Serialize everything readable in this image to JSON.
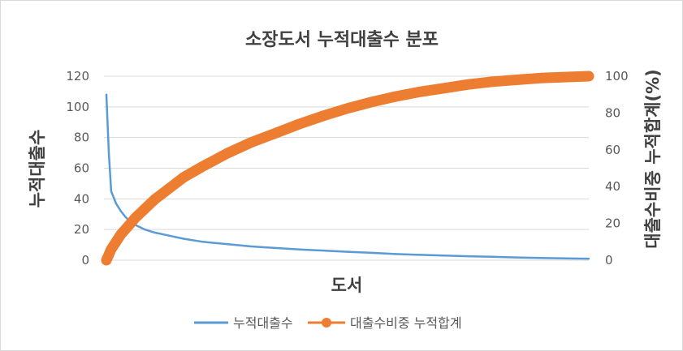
{
  "chart_data": {
    "type": "line",
    "title": "소장도서 누적대출수 분포",
    "xlabel": "도서",
    "ylabel": "누적대출수",
    "ylabel_right": "대출수비중 누적합계(%)",
    "ylim": [
      0,
      120
    ],
    "yticks": [
      "0",
      "20",
      "40",
      "60",
      "80",
      "100",
      "120"
    ],
    "ylim_right": [
      0,
      100
    ],
    "yticks_right": [
      "0",
      "20",
      "40",
      "60",
      "80",
      "100"
    ],
    "grid": true,
    "legend_position": "bottom",
    "x": [
      0,
      0.005,
      0.01,
      0.02,
      0.03,
      0.04,
      0.05,
      0.06,
      0.08,
      0.1,
      0.13,
      0.16,
      0.2,
      0.25,
      0.3,
      0.35,
      0.4,
      0.45,
      0.5,
      0.55,
      0.6,
      0.65,
      0.7,
      0.75,
      0.8,
      0.85,
      0.9,
      0.95,
      1.0
    ],
    "series": [
      {
        "name": "누적대출수",
        "axis": "left",
        "color": "#5b9bd5",
        "values": [
          108,
          70,
          45,
          37,
          32,
          28,
          25,
          23,
          20,
          18,
          16,
          14,
          12,
          10.5,
          9,
          8,
          7,
          6.3,
          5.5,
          4.8,
          4,
          3.5,
          3,
          2.6,
          2.2,
          1.8,
          1.5,
          1.2,
          1
        ]
      },
      {
        "name": "대출수비중 누적합계",
        "axis": "right",
        "color": "#ed7d31",
        "values": [
          0,
          3,
          6,
          10,
          14,
          17,
          20,
          23,
          28,
          33,
          39,
          45,
          51,
          58,
          64,
          69,
          74,
          78.5,
          82.5,
          86,
          89,
          91.5,
          93.5,
          95.5,
          97,
          98,
          99,
          99.5,
          100
        ]
      }
    ]
  }
}
